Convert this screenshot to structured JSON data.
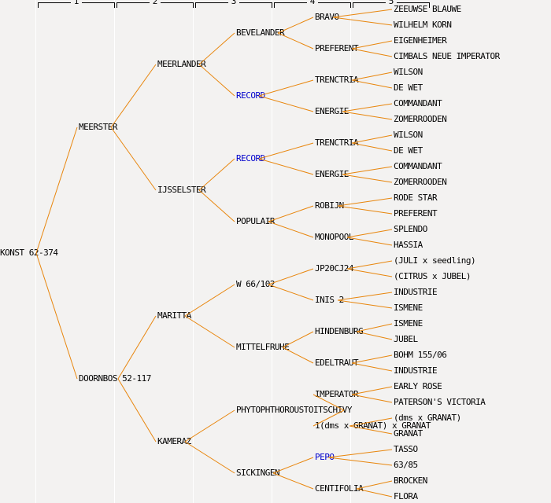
{
  "header": {
    "columns": [
      "1",
      "2",
      "3",
      "4",
      "5"
    ]
  },
  "colors": {
    "background": "#f3f2f1",
    "edge": "#e8860d",
    "text": "#000000",
    "link_text": "#0000cc",
    "column_separator": "#ffffff",
    "bracket": "#000000"
  },
  "tree": {
    "name": "KONST 62-374",
    "children": [
      {
        "name": "MEERSTER",
        "children": [
          {
            "name": "MEERLANDER",
            "children": [
              {
                "name": "BEVELANDER",
                "children": [
                  {
                    "name": "BRAVO",
                    "children": [
                      {
                        "name": "ZEEUWSE BLAUWE"
                      },
                      {
                        "name": "WILHELM KORN"
                      }
                    ]
                  },
                  {
                    "name": "PREFERENT",
                    "children": [
                      {
                        "name": "EIGENHEIMER"
                      },
                      {
                        "name": "CIMBALS NEUE IMPERATOR"
                      }
                    ]
                  }
                ]
              },
              {
                "name": "RECORD",
                "link": true,
                "children": [
                  {
                    "name": "TRENCTRIA",
                    "children": [
                      {
                        "name": "WILSON"
                      },
                      {
                        "name": "DE WET"
                      }
                    ]
                  },
                  {
                    "name": "ENERGIE",
                    "children": [
                      {
                        "name": "COMMANDANT"
                      },
                      {
                        "name": "ZOMERROODEN"
                      }
                    ]
                  }
                ]
              }
            ]
          },
          {
            "name": "IJSSELSTER",
            "children": [
              {
                "name": "RECORD",
                "link": true,
                "children": [
                  {
                    "name": "TRENCTRIA",
                    "children": [
                      {
                        "name": "WILSON"
                      },
                      {
                        "name": "DE WET"
                      }
                    ]
                  },
                  {
                    "name": "ENERGIE",
                    "children": [
                      {
                        "name": "COMMANDANT"
                      },
                      {
                        "name": "ZOMERROODEN"
                      }
                    ]
                  }
                ]
              },
              {
                "name": "POPULAIR",
                "children": [
                  {
                    "name": "ROBIJN",
                    "children": [
                      {
                        "name": "RODE STAR"
                      },
                      {
                        "name": "PREFERENT"
                      }
                    ]
                  },
                  {
                    "name": "MONOPOOL",
                    "children": [
                      {
                        "name": "SPLENDO"
                      },
                      {
                        "name": "HASSIA"
                      }
                    ]
                  }
                ]
              }
            ]
          }
        ]
      },
      {
        "name": "DOORNBOS 52-117",
        "children": [
          {
            "name": "MARITTA",
            "children": [
              {
                "name": "W 66/102",
                "children": [
                  {
                    "name": "JP20CJ24",
                    "children": [
                      {
                        "name": "(JULI x seedling)"
                      },
                      {
                        "name": "(CITRUS x JUBEL)"
                      }
                    ]
                  },
                  {
                    "name": "INIS 2",
                    "children": [
                      {
                        "name": "INDUSTRIE"
                      },
                      {
                        "name": "ISMENE"
                      }
                    ]
                  }
                ]
              },
              {
                "name": "MITTELFRUHE",
                "children": [
                  {
                    "name": "HINDENBURG",
                    "children": [
                      {
                        "name": "ISMENE"
                      },
                      {
                        "name": "JUBEL"
                      }
                    ]
                  },
                  {
                    "name": "EDELTRAUT",
                    "children": [
                      {
                        "name": "BOHM 155/06"
                      },
                      {
                        "name": "INDUSTRIE"
                      }
                    ]
                  }
                ]
              }
            ]
          },
          {
            "name": "KAMERAZ",
            "children": [
              {
                "name": "PHYTOPHTHOROUSTOITSCHIVY",
                "children": [
                  {
                    "name": "IMPERATOR",
                    "children": [
                      {
                        "name": "EARLY ROSE"
                      },
                      {
                        "name": "PATERSON'S VICTORIA"
                      }
                    ]
                  },
                  {
                    "name": "1(dms x GRANAT) x GRANAT",
                    "children": [
                      {
                        "name": "(dms x GRANAT)"
                      },
                      {
                        "name": "GRANAT"
                      }
                    ]
                  }
                ]
              },
              {
                "name": "SICKINGEN",
                "children": [
                  {
                    "name": "PEPO",
                    "link": true,
                    "children": [
                      {
                        "name": "TASSO"
                      },
                      {
                        "name": "63/85"
                      }
                    ]
                  },
                  {
                    "name": "CENTIFOLIA",
                    "children": [
                      {
                        "name": "BROCKEN"
                      },
                      {
                        "name": "FLORA"
                      }
                    ]
                  }
                ]
              }
            ]
          }
        ]
      }
    ]
  }
}
